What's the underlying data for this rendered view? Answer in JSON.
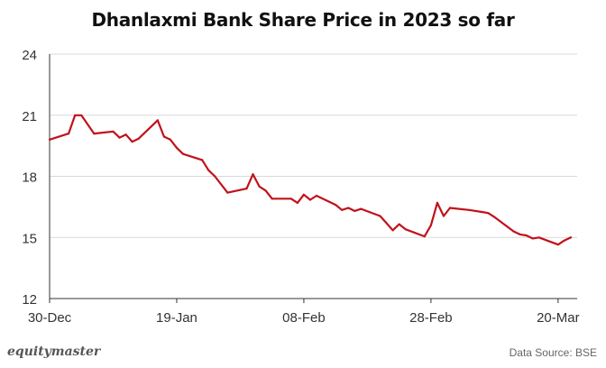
{
  "title": "Dhanlaxmi Bank Share Price in 2023 so far",
  "brand": "equitymaster",
  "source": "Data Source: BSE",
  "colors": {
    "line": "#c0121b",
    "grid": "#d9d9d9",
    "axis": "#333333",
    "text": "#333333"
  },
  "chart_data": {
    "type": "line",
    "title": "Dhanlaxmi Bank Share Price in 2023 so far",
    "xlabel": "",
    "ylabel": "",
    "xlim": [
      "2022-12-30",
      "2023-03-23"
    ],
    "ylim": [
      12,
      24
    ],
    "yticks": [
      12,
      15,
      18,
      21,
      24
    ],
    "xticks": [
      {
        "date": "2022-12-30",
        "label": "30-Dec"
      },
      {
        "date": "2023-01-19",
        "label": "19-Jan"
      },
      {
        "date": "2023-02-08",
        "label": "08-Feb"
      },
      {
        "date": "2023-02-28",
        "label": "28-Feb"
      },
      {
        "date": "2023-03-20",
        "label": "20-Mar"
      }
    ],
    "grid": true,
    "series": [
      {
        "points": [
          [
            "2022-12-30",
            19.8
          ],
          [
            "2023-01-02",
            20.1
          ],
          [
            "2023-01-03",
            21.0
          ],
          [
            "2023-01-04",
            21.0
          ],
          [
            "2023-01-06",
            20.1
          ],
          [
            "2023-01-09",
            20.2
          ],
          [
            "2023-01-10",
            19.9
          ],
          [
            "2023-01-11",
            20.05
          ],
          [
            "2023-01-12",
            19.7
          ],
          [
            "2023-01-13",
            19.85
          ],
          [
            "2023-01-16",
            20.75
          ],
          [
            "2023-01-17",
            19.95
          ],
          [
            "2023-01-18",
            19.8
          ],
          [
            "2023-01-19",
            19.4
          ],
          [
            "2023-01-20",
            19.1
          ],
          [
            "2023-01-23",
            18.8
          ],
          [
            "2023-01-24",
            18.3
          ],
          [
            "2023-01-25",
            18.0
          ],
          [
            "2023-01-27",
            17.2
          ],
          [
            "2023-01-30",
            17.4
          ],
          [
            "2023-01-31",
            18.1
          ],
          [
            "2023-02-01",
            17.5
          ],
          [
            "2023-02-02",
            17.3
          ],
          [
            "2023-02-03",
            16.9
          ],
          [
            "2023-02-06",
            16.9
          ],
          [
            "2023-02-07",
            16.7
          ],
          [
            "2023-02-08",
            17.1
          ],
          [
            "2023-02-09",
            16.85
          ],
          [
            "2023-02-10",
            17.05
          ],
          [
            "2023-02-13",
            16.6
          ],
          [
            "2023-02-14",
            16.35
          ],
          [
            "2023-02-15",
            16.45
          ],
          [
            "2023-02-16",
            16.3
          ],
          [
            "2023-02-17",
            16.4
          ],
          [
            "2023-02-20",
            16.05
          ],
          [
            "2023-02-21",
            15.7
          ],
          [
            "2023-02-22",
            15.35
          ],
          [
            "2023-02-23",
            15.65
          ],
          [
            "2023-02-24",
            15.4
          ],
          [
            "2023-02-27",
            15.05
          ],
          [
            "2023-02-28",
            15.6
          ],
          [
            "2023-03-01",
            16.7
          ],
          [
            "2023-03-02",
            16.05
          ],
          [
            "2023-03-03",
            16.45
          ],
          [
            "2023-03-06",
            16.35
          ],
          [
            "2023-03-08",
            16.25
          ],
          [
            "2023-03-09",
            16.2
          ],
          [
            "2023-03-10",
            16.0
          ],
          [
            "2023-03-13",
            15.3
          ],
          [
            "2023-03-14",
            15.15
          ],
          [
            "2023-03-15",
            15.1
          ],
          [
            "2023-03-16",
            14.95
          ],
          [
            "2023-03-17",
            15.0
          ],
          [
            "2023-03-20",
            14.65
          ],
          [
            "2023-03-21",
            14.85
          ],
          [
            "2023-03-22",
            15.0
          ]
        ]
      }
    ]
  }
}
